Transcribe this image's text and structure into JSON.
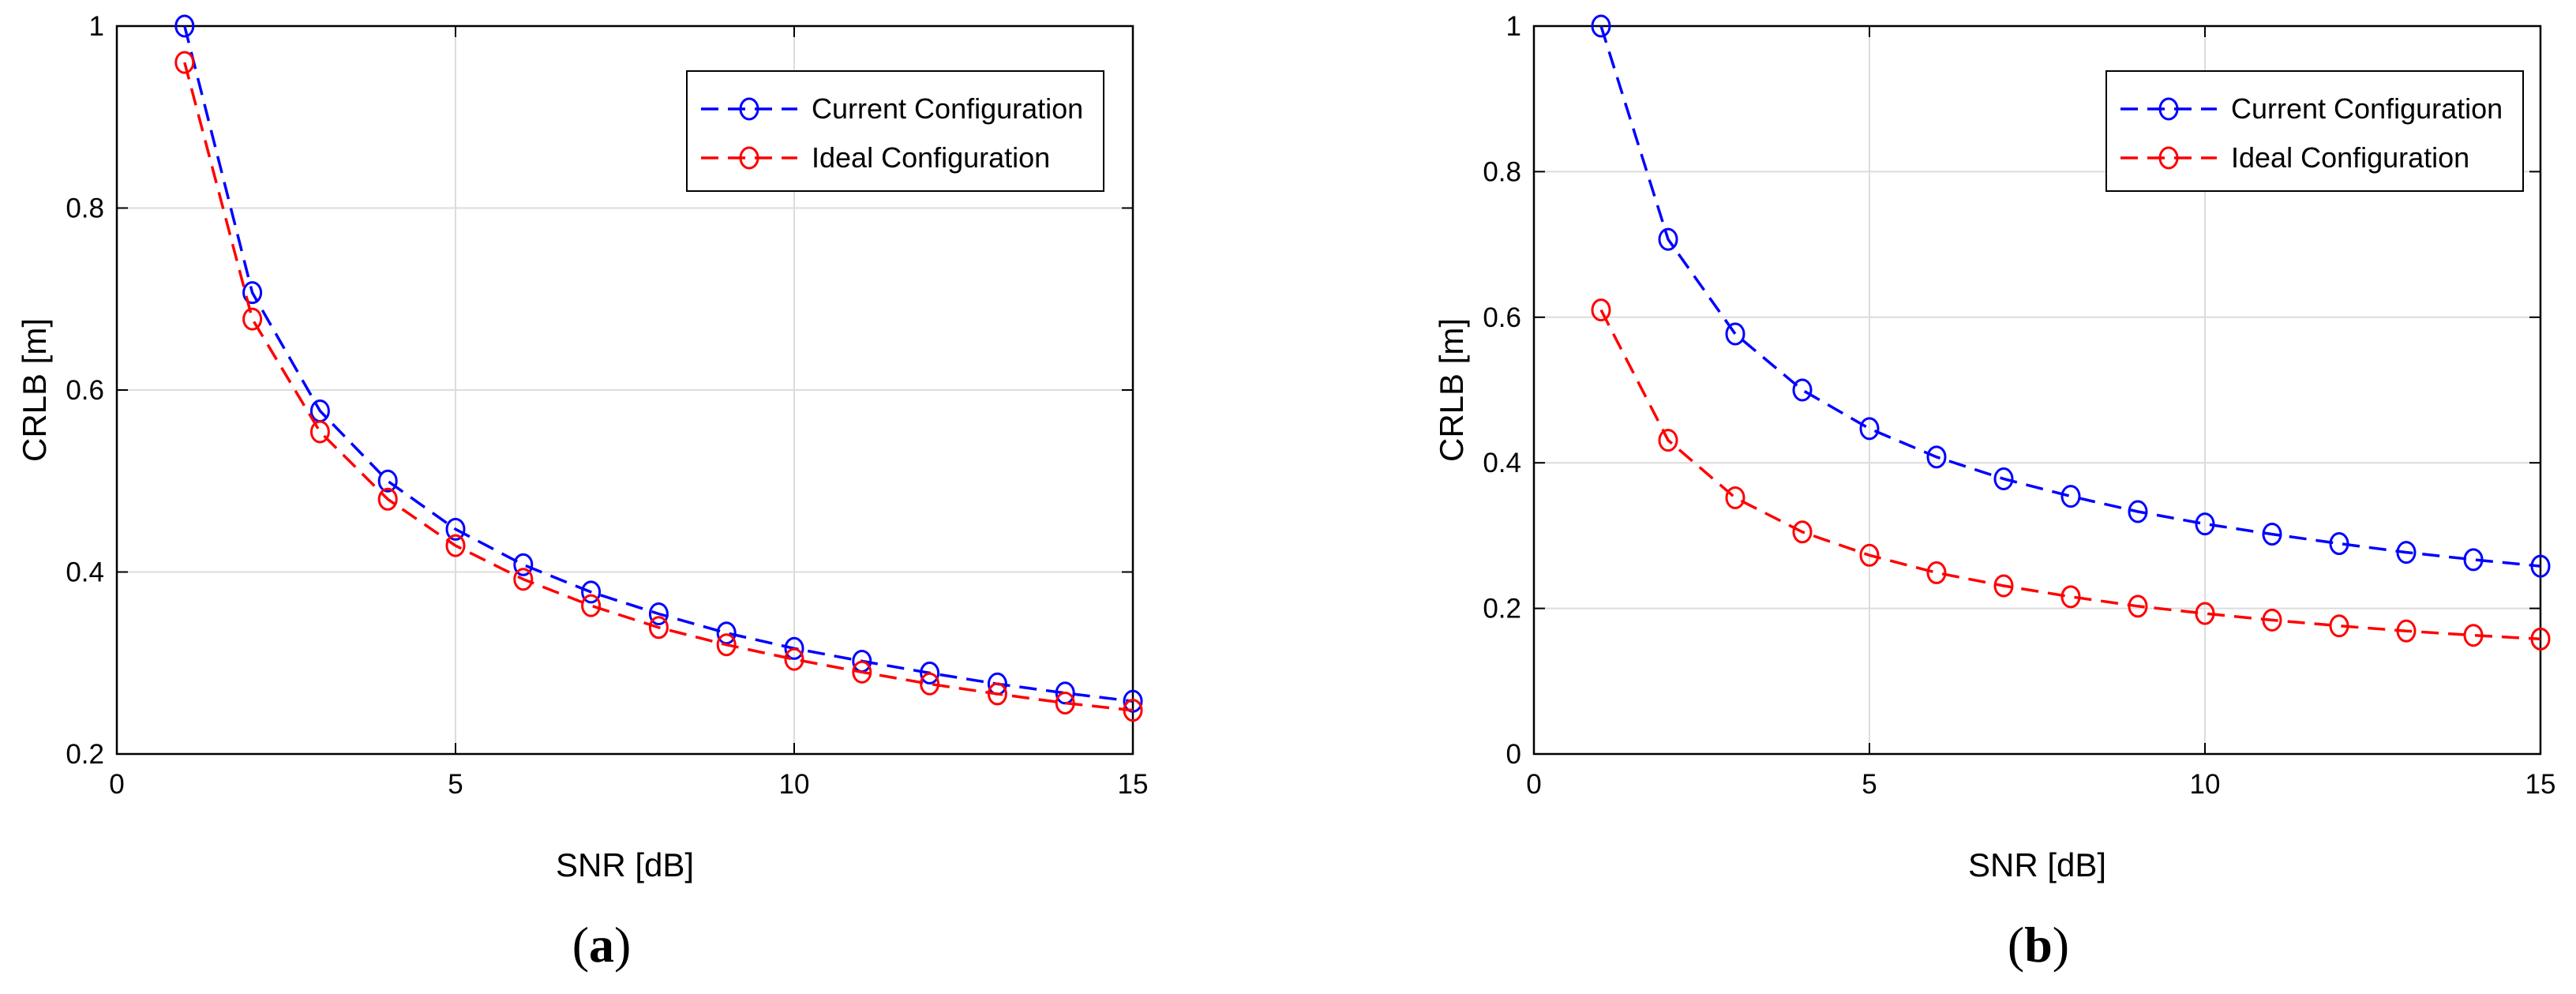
{
  "chart_data": [
    {
      "type": "line",
      "caption_open": "(",
      "caption_letter": "a",
      "caption_close": ")",
      "xlabel": "SNR [dB]",
      "ylabel": "CRLB [m]",
      "xlim": [
        0,
        15
      ],
      "ylim": [
        0.2,
        1
      ],
      "xticks": [
        0,
        5,
        10,
        15
      ],
      "yticks": [
        0.2,
        0.4,
        0.6,
        0.8,
        1
      ],
      "xtick_labels": [
        "0",
        "5",
        "10",
        "15"
      ],
      "ytick_labels": [
        "0.2",
        "0.4",
        "0.6",
        "0.8",
        "1"
      ],
      "grid": true,
      "legend_position": "top-right",
      "x": [
        1,
        2,
        3,
        4,
        5,
        6,
        7,
        8,
        9,
        10,
        11,
        12,
        13,
        14,
        15
      ],
      "series": [
        {
          "name": "Current Configuration",
          "color": "#0000ff",
          "values": [
            1.0,
            0.707,
            0.577,
            0.5,
            0.447,
            0.408,
            0.378,
            0.354,
            0.333,
            0.316,
            0.302,
            0.289,
            0.277,
            0.267,
            0.258
          ]
        },
        {
          "name": "Ideal Configuration",
          "color": "#ff0000",
          "values": [
            0.96,
            0.678,
            0.554,
            0.48,
            0.429,
            0.392,
            0.363,
            0.339,
            0.32,
            0.304,
            0.29,
            0.277,
            0.266,
            0.256,
            0.248
          ]
        }
      ]
    },
    {
      "type": "line",
      "caption_open": "(",
      "caption_letter": "b",
      "caption_close": ")",
      "xlabel": "SNR [dB]",
      "ylabel": "CRLB [m]",
      "xlim": [
        0,
        15
      ],
      "ylim": [
        0,
        1
      ],
      "xticks": [
        0,
        5,
        10,
        15
      ],
      "yticks": [
        0,
        0.2,
        0.4,
        0.6,
        0.8,
        1
      ],
      "xtick_labels": [
        "0",
        "5",
        "10",
        "15"
      ],
      "ytick_labels": [
        "0",
        "0.2",
        "0.4",
        "0.6",
        "0.8",
        "1"
      ],
      "grid": true,
      "legend_position": "top-right",
      "x": [
        1,
        2,
        3,
        4,
        5,
        6,
        7,
        8,
        9,
        10,
        11,
        12,
        13,
        14,
        15
      ],
      "series": [
        {
          "name": "Current Configuration",
          "color": "#0000ff",
          "values": [
            1.0,
            0.707,
            0.577,
            0.5,
            0.447,
            0.408,
            0.378,
            0.354,
            0.333,
            0.316,
            0.302,
            0.289,
            0.277,
            0.267,
            0.258
          ]
        },
        {
          "name": "Ideal Configuration",
          "color": "#ff0000",
          "values": [
            0.61,
            0.431,
            0.352,
            0.305,
            0.273,
            0.249,
            0.231,
            0.216,
            0.203,
            0.193,
            0.184,
            0.176,
            0.169,
            0.163,
            0.158
          ]
        }
      ]
    }
  ]
}
